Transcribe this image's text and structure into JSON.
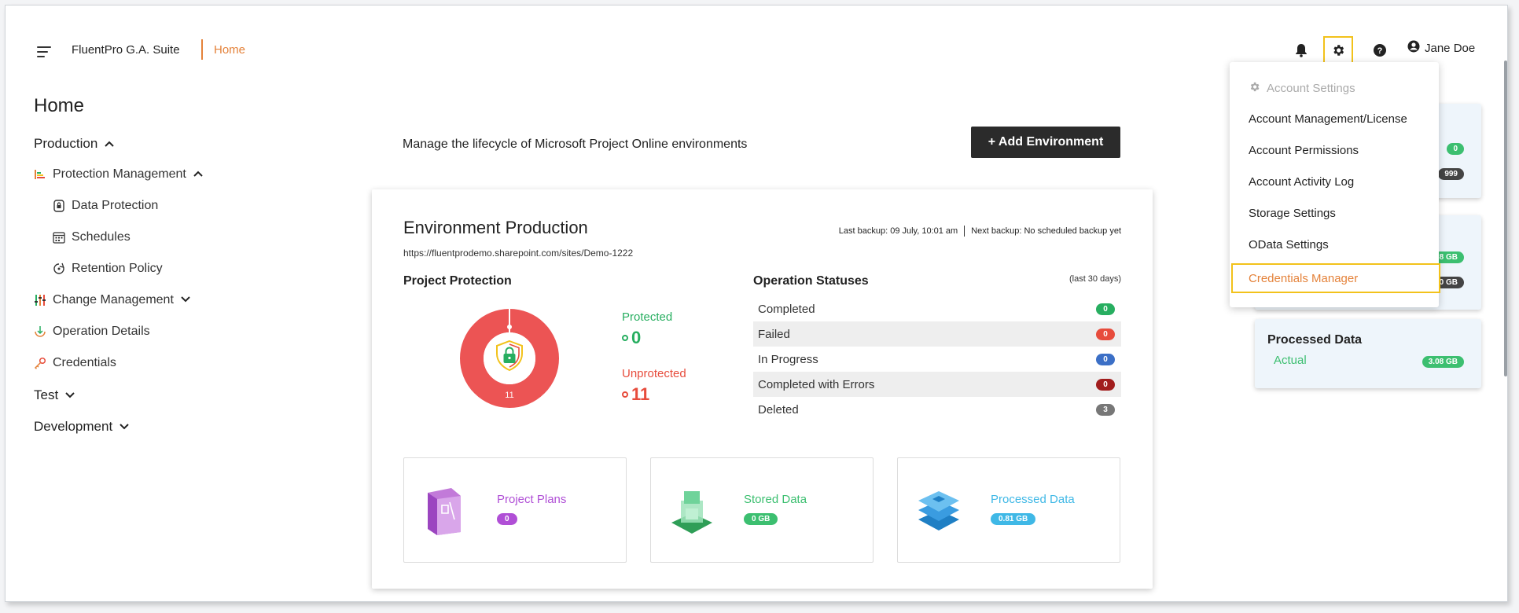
{
  "header": {
    "brand": "FluentPro G.A. Suite",
    "breadcrumb": "Home",
    "user_name": "Jane Doe"
  },
  "sidebar": {
    "title": "Home",
    "production": "Production",
    "protection_management": "Protection Management",
    "data_protection": "Data Protection",
    "schedules": "Schedules",
    "retention_policy": "Retention Policy",
    "change_management": "Change Management",
    "operation_details": "Operation Details",
    "credentials": "Credentials",
    "test": "Test",
    "development": "Development"
  },
  "main": {
    "lifecycle_text": "Manage the lifecycle of Microsoft Project Online environments",
    "add_environment_label": "+ Add Environment"
  },
  "environment": {
    "title": "Environment Production",
    "url": "https://fluentprodemo.sharepoint.com/sites/Demo-1222",
    "last_backup": "Last backup: 09 July, 10:01 am",
    "next_backup": "Next backup: No scheduled backup yet",
    "project_protection_title": "Project Protection",
    "donut_total": "11",
    "protected_label": "Protected",
    "protected_value": "0",
    "unprotected_label": "Unprotected",
    "unprotected_value": "11",
    "operation_statuses_title": "Operation Statuses",
    "period": "(last 30 days)",
    "statuses": [
      {
        "label": "Completed",
        "count": "0",
        "color": "#27ae60"
      },
      {
        "label": "Failed",
        "count": "0",
        "color": "#e74c3c"
      },
      {
        "label": "In Progress",
        "count": "0",
        "color": "#3b6fc6"
      },
      {
        "label": "Completed with Errors",
        "count": "0",
        "color": "#a11d1d"
      },
      {
        "label": "Deleted",
        "count": "3",
        "color": "#777777"
      }
    ],
    "stats": {
      "project_plans": {
        "label": "Project Plans",
        "value": "0",
        "color": "#b04fd6"
      },
      "stored_data": {
        "label": "Stored Data",
        "value": "0 GB",
        "color": "#3cbf70"
      },
      "processed_data": {
        "label": "Processed Data",
        "value": "0.81 GB",
        "color": "#3fb8e6"
      }
    }
  },
  "right_cards": {
    "card1_pill1": "0",
    "card1_pill2": "999",
    "card2_pill1": "8 GB",
    "card2_pill2": "0 GB",
    "processed_data_title": "Processed Data",
    "actual_label": "Actual",
    "actual_value": "3.08 GB"
  },
  "account_menu": {
    "heading": "Account Settings",
    "items": [
      "Account Management/License",
      "Account Permissions",
      "Account Activity Log",
      "Storage Settings",
      "OData Settings"
    ],
    "active_item": "Credentials Manager"
  },
  "colors": {
    "accent": "#e4823a",
    "highlight": "#f2c21b",
    "protected": "#27ae60",
    "unprotected": "#e74c3c",
    "donut": "#ec5454"
  },
  "icons": {
    "menu": "hamburger-icon",
    "notifications": "bell-icon",
    "settings": "gear-icon",
    "help": "help-icon",
    "user": "user-circle-icon"
  }
}
